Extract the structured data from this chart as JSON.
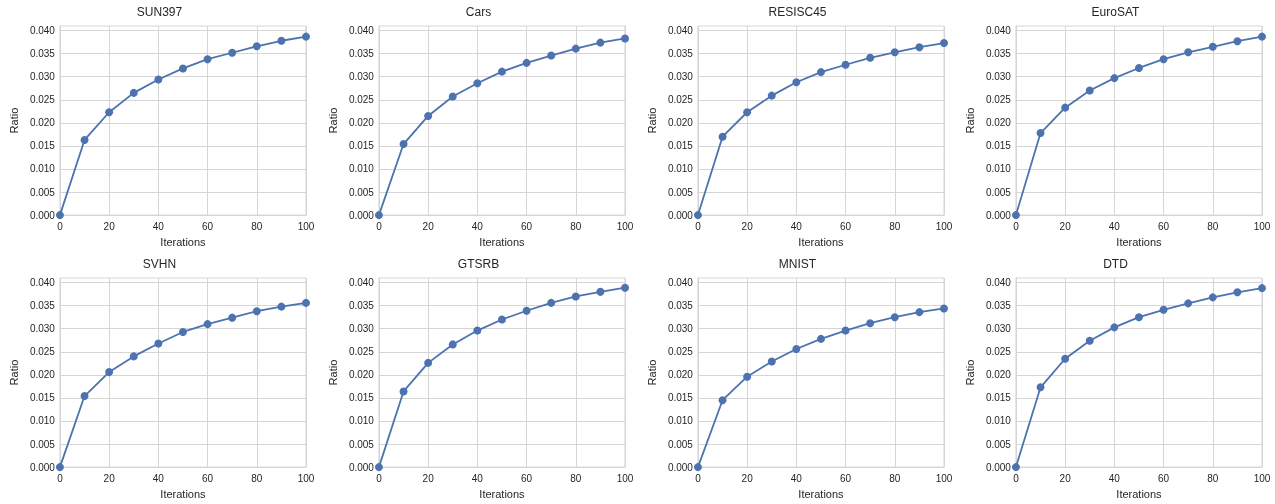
{
  "chart_data": [
    {
      "type": "line",
      "title": "SUN397",
      "xlabel": "Iterations",
      "ylabel": "Ratio",
      "x": [
        0,
        10,
        20,
        30,
        40,
        50,
        60,
        70,
        80,
        90,
        100
      ],
      "values": [
        0,
        0.0163,
        0.0223,
        0.0265,
        0.0294,
        0.0318,
        0.0338,
        0.0352,
        0.0366,
        0.0378,
        0.0387
      ],
      "color": "#4c72b0",
      "xlim": [
        0,
        100
      ],
      "ylim": [
        0,
        0.041
      ],
      "xticks": [
        0,
        20,
        40,
        60,
        80,
        100
      ],
      "yticks": [
        {
          "value": 0,
          "label": "0.000"
        },
        {
          "value": 0.005,
          "label": "0.005"
        },
        {
          "value": 0.01,
          "label": "0.010"
        },
        {
          "value": 0.015,
          "label": "0.015"
        },
        {
          "value": 0.02,
          "label": "0.020"
        },
        {
          "value": 0.025,
          "label": "0.025"
        },
        {
          "value": 0.03,
          "label": "0.030"
        },
        {
          "value": 0.035,
          "label": "0.035"
        },
        {
          "value": 0.04,
          "label": "0.040"
        }
      ],
      "grid": true,
      "marker": "circle",
      "line_style": "solid"
    },
    {
      "type": "line",
      "title": "Cars",
      "xlabel": "Iterations",
      "ylabel": "Ratio",
      "x": [
        0,
        10,
        20,
        30,
        40,
        50,
        60,
        70,
        80,
        90,
        100
      ],
      "values": [
        0,
        0.0154,
        0.0215,
        0.0257,
        0.0286,
        0.0311,
        0.033,
        0.0346,
        0.0361,
        0.0374,
        0.0383
      ],
      "color": "#4c72b0",
      "xlim": [
        0,
        100
      ],
      "ylim": [
        0,
        0.041
      ],
      "xticks": [
        0,
        20,
        40,
        60,
        80,
        100
      ],
      "yticks": [
        {
          "value": 0,
          "label": "0.000"
        },
        {
          "value": 0.005,
          "label": "0.005"
        },
        {
          "value": 0.01,
          "label": "0.010"
        },
        {
          "value": 0.015,
          "label": "0.015"
        },
        {
          "value": 0.02,
          "label": "0.020"
        },
        {
          "value": 0.025,
          "label": "0.025"
        },
        {
          "value": 0.03,
          "label": "0.030"
        },
        {
          "value": 0.035,
          "label": "0.035"
        },
        {
          "value": 0.04,
          "label": "0.040"
        }
      ],
      "grid": true,
      "marker": "circle",
      "line_style": "solid"
    },
    {
      "type": "line",
      "title": "RESISC45",
      "xlabel": "Iterations",
      "ylabel": "Ratio",
      "x": [
        0,
        10,
        20,
        30,
        40,
        50,
        60,
        70,
        80,
        90,
        100
      ],
      "values": [
        0,
        0.017,
        0.0223,
        0.0259,
        0.0288,
        0.031,
        0.0326,
        0.0341,
        0.0353,
        0.0364,
        0.0373
      ],
      "color": "#4c72b0",
      "xlim": [
        0,
        100
      ],
      "ylim": [
        0,
        0.041
      ],
      "xticks": [
        0,
        20,
        40,
        60,
        80,
        100
      ],
      "yticks": [
        {
          "value": 0,
          "label": "0.000"
        },
        {
          "value": 0.005,
          "label": "0.005"
        },
        {
          "value": 0.01,
          "label": "0.010"
        },
        {
          "value": 0.015,
          "label": "0.015"
        },
        {
          "value": 0.02,
          "label": "0.020"
        },
        {
          "value": 0.025,
          "label": "0.025"
        },
        {
          "value": 0.03,
          "label": "0.030"
        },
        {
          "value": 0.035,
          "label": "0.035"
        },
        {
          "value": 0.04,
          "label": "0.040"
        }
      ],
      "grid": true,
      "marker": "circle",
      "line_style": "solid"
    },
    {
      "type": "line",
      "title": "EuroSAT",
      "xlabel": "Iterations",
      "ylabel": "Ratio",
      "x": [
        0,
        10,
        20,
        30,
        40,
        50,
        60,
        70,
        80,
        90,
        100
      ],
      "values": [
        0,
        0.0178,
        0.0233,
        0.027,
        0.0297,
        0.0319,
        0.0338,
        0.0353,
        0.0365,
        0.0377,
        0.0387
      ],
      "color": "#4c72b0",
      "xlim": [
        0,
        100
      ],
      "ylim": [
        0,
        0.041
      ],
      "xticks": [
        0,
        20,
        40,
        60,
        80,
        100
      ],
      "yticks": [
        {
          "value": 0,
          "label": "0.000"
        },
        {
          "value": 0.005,
          "label": "0.005"
        },
        {
          "value": 0.01,
          "label": "0.010"
        },
        {
          "value": 0.015,
          "label": "0.015"
        },
        {
          "value": 0.02,
          "label": "0.020"
        },
        {
          "value": 0.025,
          "label": "0.025"
        },
        {
          "value": 0.03,
          "label": "0.030"
        },
        {
          "value": 0.035,
          "label": "0.035"
        },
        {
          "value": 0.04,
          "label": "0.040"
        }
      ],
      "grid": true,
      "marker": "circle",
      "line_style": "solid"
    },
    {
      "type": "line",
      "title": "SVHN",
      "xlabel": "Iterations",
      "ylabel": "Ratio",
      "x": [
        0,
        10,
        20,
        30,
        40,
        50,
        60,
        70,
        80,
        90,
        100
      ],
      "values": [
        0,
        0.0154,
        0.0206,
        0.024,
        0.0268,
        0.0293,
        0.031,
        0.0324,
        0.0338,
        0.0348,
        0.0356
      ],
      "color": "#4c72b0",
      "xlim": [
        0,
        100
      ],
      "ylim": [
        0,
        0.041
      ],
      "xticks": [
        0,
        20,
        40,
        60,
        80,
        100
      ],
      "yticks": [
        {
          "value": 0,
          "label": "0.000"
        },
        {
          "value": 0.005,
          "label": "0.005"
        },
        {
          "value": 0.01,
          "label": "0.010"
        },
        {
          "value": 0.015,
          "label": "0.015"
        },
        {
          "value": 0.02,
          "label": "0.020"
        },
        {
          "value": 0.025,
          "label": "0.025"
        },
        {
          "value": 0.03,
          "label": "0.030"
        },
        {
          "value": 0.035,
          "label": "0.035"
        },
        {
          "value": 0.04,
          "label": "0.040"
        }
      ],
      "grid": true,
      "marker": "circle",
      "line_style": "solid"
    },
    {
      "type": "line",
      "title": "GTSRB",
      "xlabel": "Iterations",
      "ylabel": "Ratio",
      "x": [
        0,
        10,
        20,
        30,
        40,
        50,
        60,
        70,
        80,
        90,
        100
      ],
      "values": [
        0,
        0.0164,
        0.0226,
        0.0266,
        0.0296,
        0.032,
        0.0339,
        0.0356,
        0.037,
        0.038,
        0.0389
      ],
      "color": "#4c72b0",
      "xlim": [
        0,
        100
      ],
      "ylim": [
        0,
        0.041
      ],
      "xticks": [
        0,
        20,
        40,
        60,
        80,
        100
      ],
      "yticks": [
        {
          "value": 0,
          "label": "0.000"
        },
        {
          "value": 0.005,
          "label": "0.005"
        },
        {
          "value": 0.01,
          "label": "0.010"
        },
        {
          "value": 0.015,
          "label": "0.015"
        },
        {
          "value": 0.02,
          "label": "0.020"
        },
        {
          "value": 0.025,
          "label": "0.025"
        },
        {
          "value": 0.03,
          "label": "0.030"
        },
        {
          "value": 0.035,
          "label": "0.035"
        },
        {
          "value": 0.04,
          "label": "0.040"
        }
      ],
      "grid": true,
      "marker": "circle",
      "line_style": "solid"
    },
    {
      "type": "line",
      "title": "MNIST",
      "xlabel": "Iterations",
      "ylabel": "Ratio",
      "x": [
        0,
        10,
        20,
        30,
        40,
        50,
        60,
        70,
        80,
        90,
        100
      ],
      "values": [
        0,
        0.0145,
        0.0196,
        0.0229,
        0.0256,
        0.0278,
        0.0296,
        0.0312,
        0.0325,
        0.0336,
        0.0344
      ],
      "color": "#4c72b0",
      "xlim": [
        0,
        100
      ],
      "ylim": [
        0,
        0.041
      ],
      "xticks": [
        0,
        20,
        40,
        60,
        80,
        100
      ],
      "yticks": [
        {
          "value": 0,
          "label": "0.000"
        },
        {
          "value": 0.005,
          "label": "0.005"
        },
        {
          "value": 0.01,
          "label": "0.010"
        },
        {
          "value": 0.015,
          "label": "0.015"
        },
        {
          "value": 0.02,
          "label": "0.020"
        },
        {
          "value": 0.025,
          "label": "0.025"
        },
        {
          "value": 0.03,
          "label": "0.030"
        },
        {
          "value": 0.035,
          "label": "0.035"
        },
        {
          "value": 0.04,
          "label": "0.040"
        }
      ],
      "grid": true,
      "marker": "circle",
      "line_style": "solid"
    },
    {
      "type": "line",
      "title": "DTD",
      "xlabel": "Iterations",
      "ylabel": "Ratio",
      "x": [
        0,
        10,
        20,
        30,
        40,
        50,
        60,
        70,
        80,
        90,
        100
      ],
      "values": [
        0,
        0.0173,
        0.0235,
        0.0274,
        0.0303,
        0.0325,
        0.0341,
        0.0355,
        0.0368,
        0.0379,
        0.0388
      ],
      "color": "#4c72b0",
      "xlim": [
        0,
        100
      ],
      "ylim": [
        0,
        0.041
      ],
      "xticks": [
        0,
        20,
        40,
        60,
        80,
        100
      ],
      "yticks": [
        {
          "value": 0,
          "label": "0.000"
        },
        {
          "value": 0.005,
          "label": "0.005"
        },
        {
          "value": 0.01,
          "label": "0.010"
        },
        {
          "value": 0.015,
          "label": "0.015"
        },
        {
          "value": 0.02,
          "label": "0.020"
        },
        {
          "value": 0.025,
          "label": "0.025"
        },
        {
          "value": 0.03,
          "label": "0.030"
        },
        {
          "value": 0.035,
          "label": "0.035"
        },
        {
          "value": 0.04,
          "label": "0.040"
        }
      ],
      "grid": true,
      "marker": "circle",
      "line_style": "solid"
    }
  ]
}
